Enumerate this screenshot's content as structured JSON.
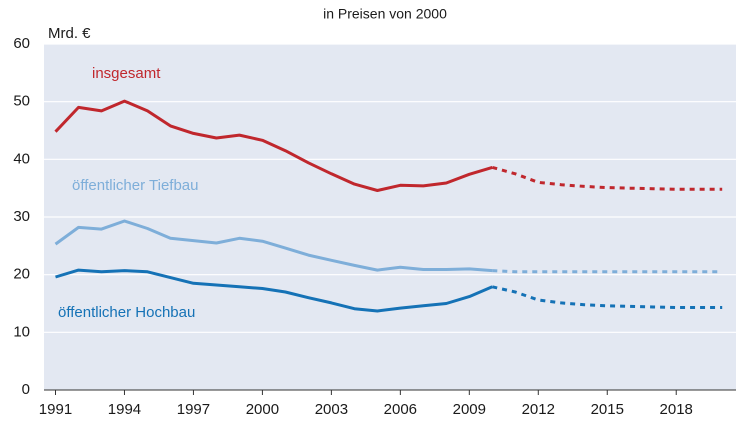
{
  "chart_data": {
    "type": "line",
    "subtitle": "in Preisen von 2000",
    "y_label": "Mrd. €",
    "x": [
      1991,
      1992,
      1993,
      1994,
      1995,
      1996,
      1997,
      1998,
      1999,
      2000,
      2001,
      2002,
      2003,
      2004,
      2005,
      2006,
      2007,
      2008,
      2009,
      2010,
      2011,
      2012,
      2013,
      2014,
      2015,
      2016,
      2017,
      2018,
      2019,
      2020
    ],
    "series": [
      {
        "name": "insgesamt",
        "color": "#c0272d",
        "values": [
          44.8,
          49,
          48.4,
          50.1,
          48.4,
          45.8,
          44.5,
          43.7,
          44.2,
          43.3,
          41.5,
          39.4,
          37.5,
          35.7,
          34.6,
          35.5,
          35.4,
          35.9,
          37.4,
          38.6,
          37.5,
          36,
          35.6,
          35.3,
          35.1,
          35,
          34.9,
          34.8,
          34.8,
          34.8
        ]
      },
      {
        "name": "öffentlicher Tiefbau",
        "color": "#7eaed9",
        "values": [
          25.3,
          28.2,
          27.9,
          29.3,
          28,
          26.3,
          25.9,
          25.5,
          26.3,
          25.8,
          24.6,
          23.4,
          22.5,
          21.6,
          20.8,
          21.3,
          20.9,
          20.9,
          21,
          20.7,
          20.5,
          20.5,
          20.5,
          20.5,
          20.5,
          20.5,
          20.5,
          20.5,
          20.5,
          20.5
        ]
      },
      {
        "name": "öffentlicher Hochbau",
        "color": "#1572b6",
        "values": [
          19.6,
          20.8,
          20.5,
          20.7,
          20.5,
          19.5,
          18.5,
          18.2,
          17.9,
          17.6,
          17,
          16,
          15.1,
          14.1,
          13.7,
          14.2,
          14.6,
          15,
          16.2,
          17.9,
          17,
          15.6,
          15.1,
          14.8,
          14.6,
          14.5,
          14.4,
          14.3,
          14.3,
          14.3
        ]
      }
    ],
    "forecast_from": 2010,
    "xlim": [
      1990.5,
      2020.6
    ],
    "xticks": [
      1991,
      1994,
      1997,
      2000,
      2003,
      2006,
      2009,
      2012,
      2015,
      2018
    ],
    "ylim": [
      0,
      60
    ],
    "yticks": [
      0,
      10,
      20,
      30,
      40,
      50,
      60
    ],
    "grid": true,
    "background": "#e3e8f2"
  }
}
